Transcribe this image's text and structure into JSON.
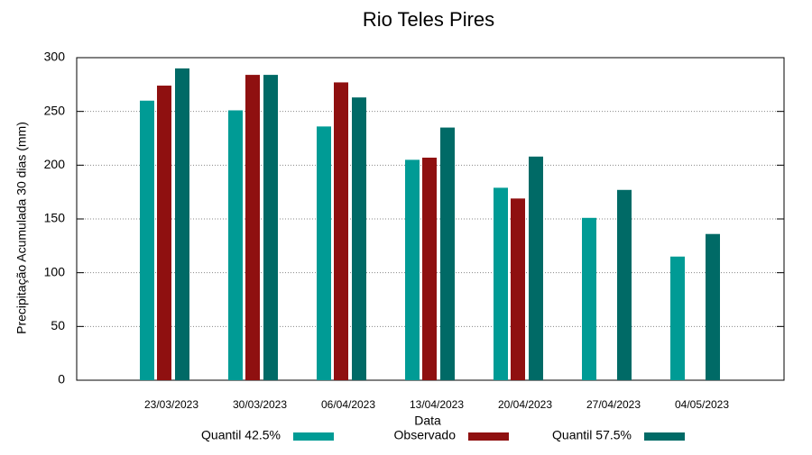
{
  "chart_data": {
    "type": "bar",
    "title": "Rio Teles Pires",
    "x_label": "Data",
    "y_label": "Precipitação Acumulada 30 dias (mm)",
    "categories": [
      "23/03/2023",
      "30/03/2023",
      "06/04/2023",
      "13/04/2023",
      "20/04/2023",
      "27/04/2023",
      "04/05/2023"
    ],
    "series": [
      {
        "name": "Quantil 42.5%",
        "color": "#009b95",
        "values": [
          260,
          251,
          236,
          205,
          179,
          151,
          115
        ]
      },
      {
        "name": "Observado",
        "color": "#8f1010",
        "values": [
          274,
          284,
          277,
          207,
          169,
          null,
          null
        ]
      },
      {
        "name": "Quantil 57.5%",
        "color": "#006a66",
        "values": [
          290,
          284,
          263,
          235,
          208,
          177,
          136
        ]
      }
    ],
    "ylim": [
      0,
      300
    ],
    "yticks": [
      0,
      50,
      100,
      150,
      200,
      250,
      300
    ],
    "grid": true,
    "legend": "bottom"
  }
}
